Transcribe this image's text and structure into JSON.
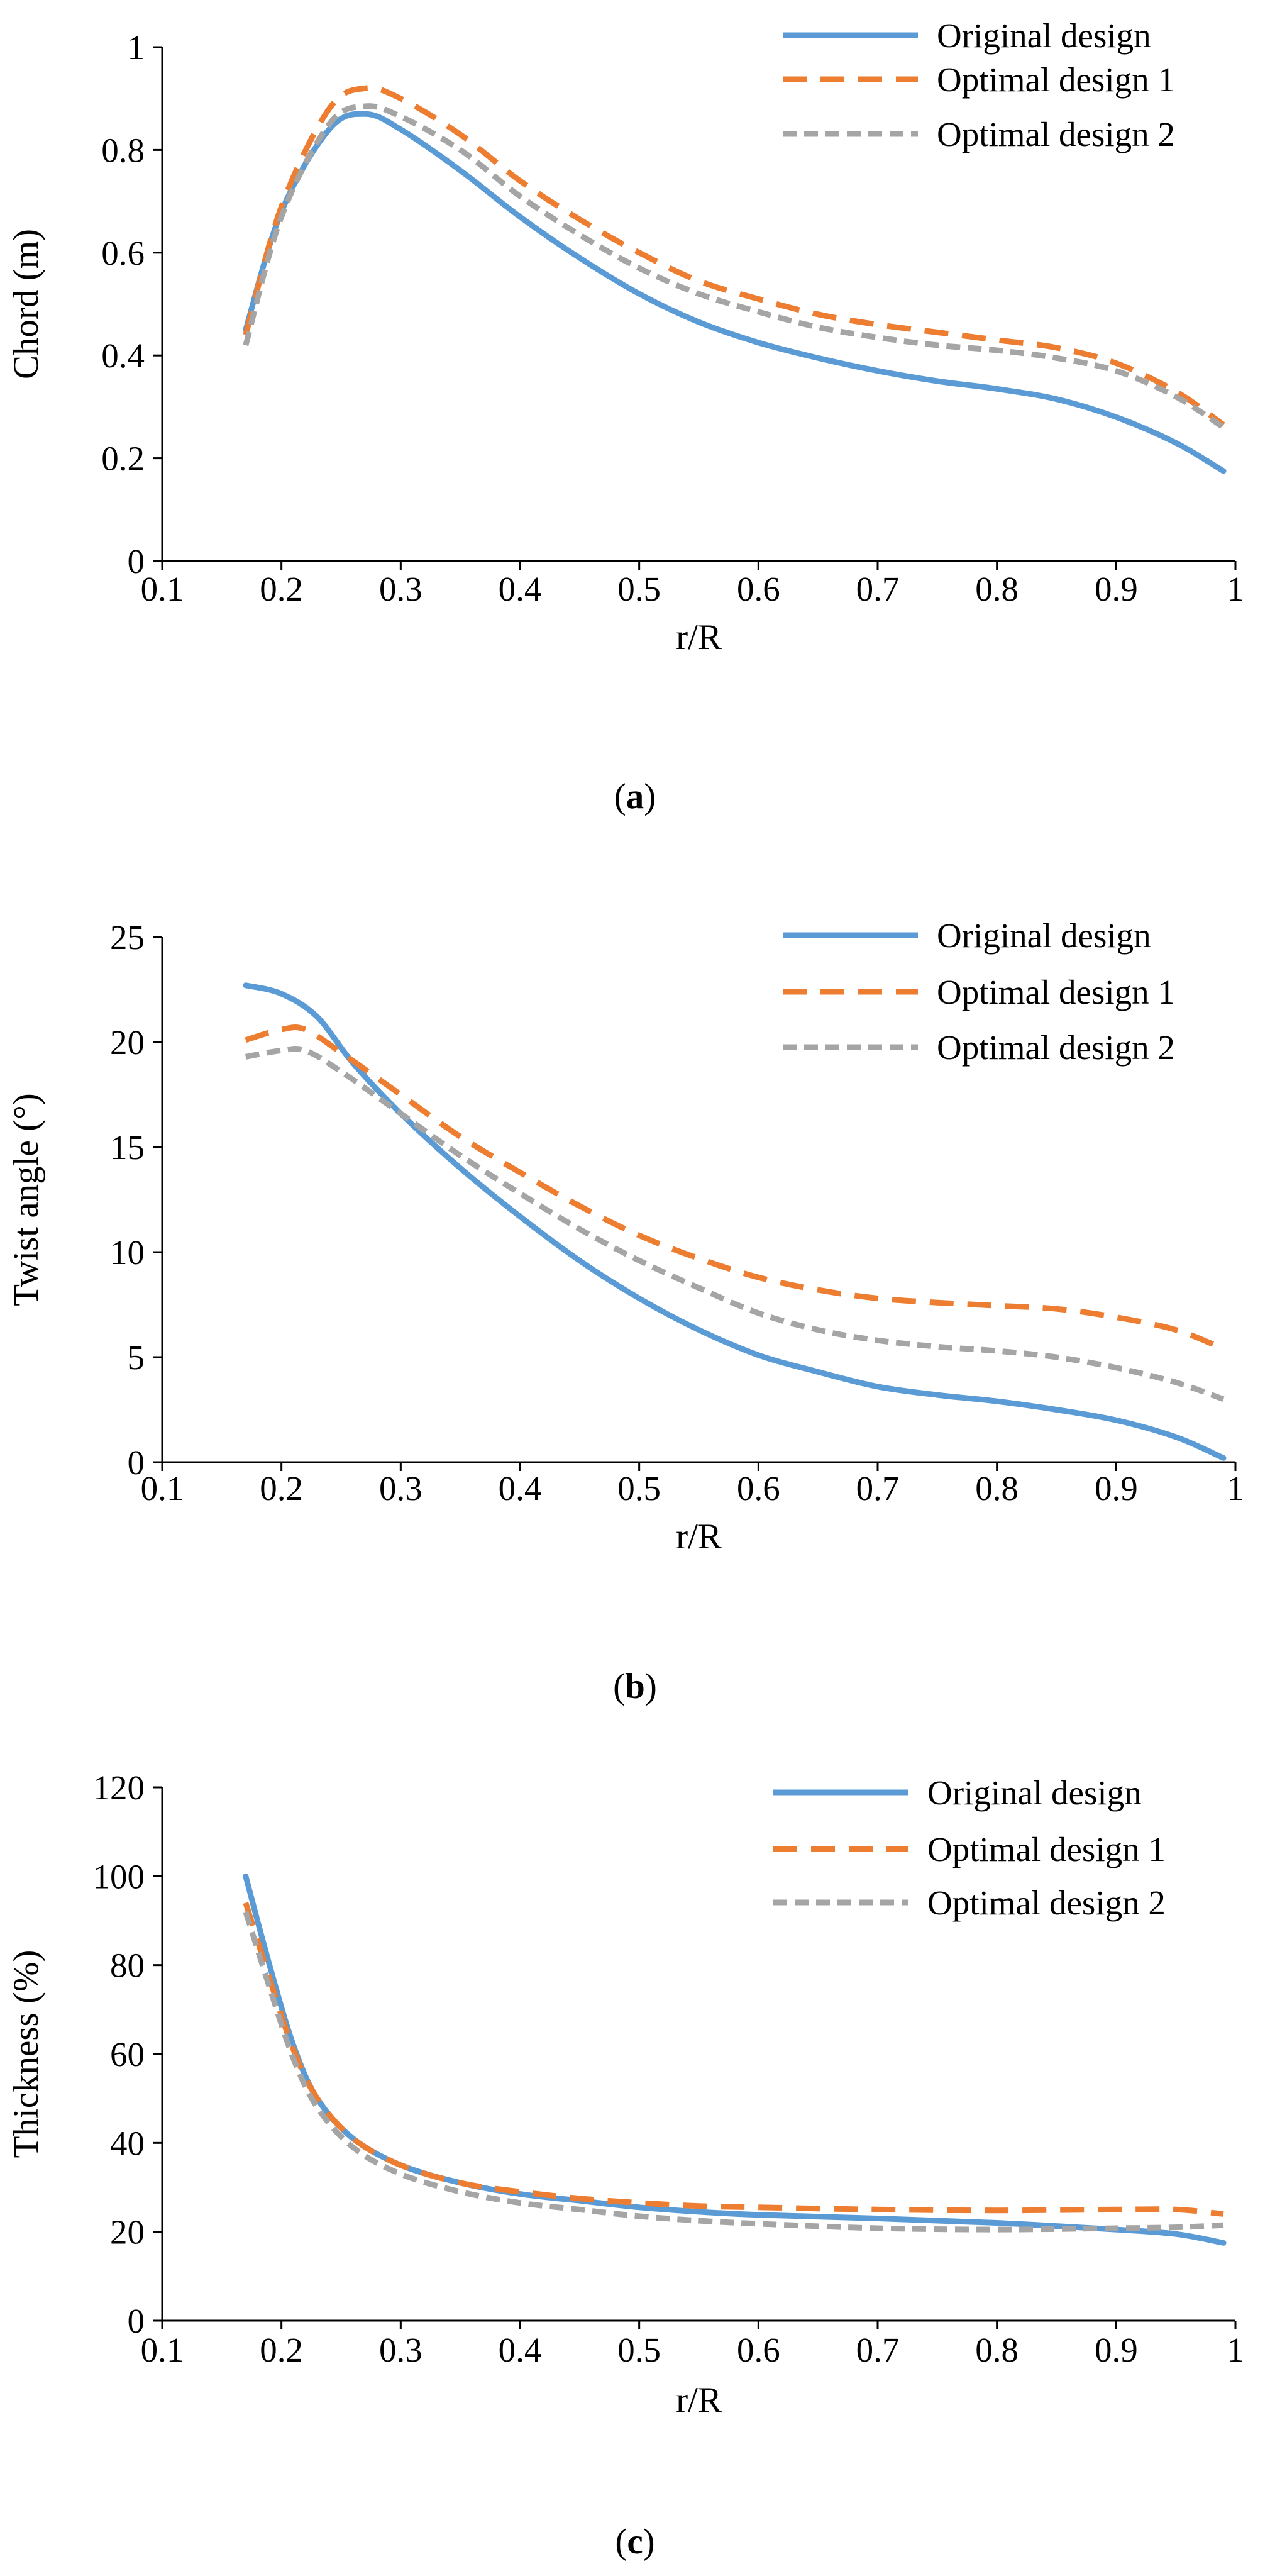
{
  "chart_data": [
    {
      "type": "line",
      "panel_label": "a",
      "xlabel": "r/R",
      "ylabel": "Chord (m)",
      "xlim": [
        0.1,
        1
      ],
      "ylim": [
        0,
        1
      ],
      "x_ticks": [
        0.1,
        0.2,
        0.3,
        0.4,
        0.5,
        0.6,
        0.7,
        0.8,
        0.9,
        1
      ],
      "y_ticks": [
        0,
        0.2,
        0.4,
        0.6,
        0.8,
        1
      ],
      "x_tick_labels": [
        "0.1",
        "0.2",
        "0.3",
        "0.4",
        "0.5",
        "0.6",
        "0.7",
        "0.8",
        "0.9",
        "1"
      ],
      "y_tick_labels": [
        "0",
        "0.2",
        "0.4",
        "0.6",
        "0.8",
        "1"
      ],
      "legend_position": "top-right",
      "grid": false,
      "series": [
        {
          "name": "Original design",
          "style": "solid",
          "color": "#5B9BD5",
          "x": [
            0.17,
            0.2,
            0.24,
            0.27,
            0.3,
            0.35,
            0.4,
            0.45,
            0.5,
            0.55,
            0.6,
            0.65,
            0.7,
            0.75,
            0.8,
            0.85,
            0.9,
            0.95,
            0.99
          ],
          "y": [
            0.45,
            0.68,
            0.84,
            0.87,
            0.84,
            0.76,
            0.67,
            0.59,
            0.52,
            0.465,
            0.425,
            0.395,
            0.37,
            0.35,
            0.335,
            0.315,
            0.28,
            0.23,
            0.175
          ]
        },
        {
          "name": "Optimal design 1",
          "style": "dashed",
          "color": "#ED7D31",
          "x": [
            0.17,
            0.2,
            0.24,
            0.27,
            0.3,
            0.35,
            0.4,
            0.45,
            0.5,
            0.55,
            0.6,
            0.65,
            0.7,
            0.75,
            0.8,
            0.85,
            0.9,
            0.95,
            0.99
          ],
          "y": [
            0.44,
            0.69,
            0.88,
            0.92,
            0.9,
            0.83,
            0.74,
            0.665,
            0.6,
            0.545,
            0.51,
            0.48,
            0.46,
            0.445,
            0.43,
            0.415,
            0.385,
            0.33,
            0.265
          ]
        },
        {
          "name": "Optimal design 2",
          "style": "dotted",
          "color": "#A5A5A5",
          "x": [
            0.17,
            0.2,
            0.24,
            0.27,
            0.3,
            0.35,
            0.4,
            0.45,
            0.5,
            0.55,
            0.6,
            0.65,
            0.7,
            0.75,
            0.8,
            0.85,
            0.9,
            0.95,
            0.99
          ],
          "y": [
            0.42,
            0.67,
            0.85,
            0.885,
            0.865,
            0.8,
            0.71,
            0.635,
            0.57,
            0.52,
            0.485,
            0.455,
            0.435,
            0.42,
            0.41,
            0.395,
            0.37,
            0.32,
            0.26
          ]
        }
      ]
    },
    {
      "type": "line",
      "panel_label": "b",
      "xlabel": "r/R",
      "ylabel": "Twist angle (°)",
      "xlim": [
        0.1,
        1
      ],
      "ylim": [
        0,
        25
      ],
      "x_ticks": [
        0.1,
        0.2,
        0.3,
        0.4,
        0.5,
        0.6,
        0.7,
        0.8,
        0.9,
        1
      ],
      "y_ticks": [
        0,
        5,
        10,
        15,
        20,
        25
      ],
      "x_tick_labels": [
        "0.1",
        "0.2",
        "0.3",
        "0.4",
        "0.5",
        "0.6",
        "0.7",
        "0.8",
        "0.9",
        "1"
      ],
      "y_tick_labels": [
        "0",
        "5",
        "10",
        "15",
        "20",
        "25"
      ],
      "legend_position": "top-right",
      "grid": false,
      "series": [
        {
          "name": "Original design",
          "style": "solid",
          "color": "#5B9BD5",
          "x": [
            0.17,
            0.2,
            0.23,
            0.26,
            0.3,
            0.35,
            0.4,
            0.45,
            0.5,
            0.55,
            0.6,
            0.65,
            0.7,
            0.75,
            0.8,
            0.85,
            0.9,
            0.95,
            0.99
          ],
          "y": [
            22.7,
            22.3,
            21.2,
            19.0,
            16.6,
            14.0,
            11.7,
            9.6,
            7.8,
            6.3,
            5.1,
            4.3,
            3.6,
            3.2,
            2.9,
            2.5,
            2.0,
            1.2,
            0.2
          ]
        },
        {
          "name": "Optimal design 1",
          "style": "dashed",
          "color": "#ED7D31",
          "x": [
            0.17,
            0.2,
            0.22,
            0.25,
            0.3,
            0.35,
            0.4,
            0.45,
            0.5,
            0.55,
            0.6,
            0.65,
            0.7,
            0.75,
            0.8,
            0.85,
            0.9,
            0.95,
            0.99
          ],
          "y": [
            20.1,
            20.6,
            20.6,
            19.5,
            17.5,
            15.5,
            13.8,
            12.2,
            10.8,
            9.7,
            8.8,
            8.2,
            7.8,
            7.6,
            7.45,
            7.3,
            6.9,
            6.3,
            5.4
          ]
        },
        {
          "name": "Optimal design 2",
          "style": "dotted",
          "color": "#A5A5A5",
          "x": [
            0.17,
            0.2,
            0.22,
            0.25,
            0.3,
            0.35,
            0.4,
            0.45,
            0.5,
            0.55,
            0.6,
            0.65,
            0.7,
            0.75,
            0.8,
            0.85,
            0.9,
            0.95,
            0.99
          ],
          "y": [
            19.3,
            19.6,
            19.6,
            18.6,
            16.6,
            14.6,
            12.8,
            11.1,
            9.6,
            8.3,
            7.1,
            6.3,
            5.8,
            5.5,
            5.3,
            5.0,
            4.5,
            3.8,
            3.0
          ]
        }
      ]
    },
    {
      "type": "line",
      "panel_label": "c",
      "xlabel": "r/R",
      "ylabel": "Thickness (%)",
      "xlim": [
        0.1,
        1
      ],
      "ylim": [
        0,
        120
      ],
      "x_ticks": [
        0.1,
        0.2,
        0.3,
        0.4,
        0.5,
        0.6,
        0.7,
        0.8,
        0.9,
        1
      ],
      "y_ticks": [
        0,
        20,
        40,
        60,
        80,
        100,
        120
      ],
      "x_tick_labels": [
        "0.1",
        "0.2",
        "0.3",
        "0.4",
        "0.5",
        "0.6",
        "0.7",
        "0.8",
        "0.9",
        "1"
      ],
      "y_tick_labels": [
        "0",
        "20",
        "40",
        "60",
        "80",
        "100",
        "120"
      ],
      "legend_position": "top-right",
      "grid": false,
      "series": [
        {
          "name": "Original design",
          "style": "solid",
          "color": "#5B9BD5",
          "x": [
            0.17,
            0.19,
            0.21,
            0.23,
            0.26,
            0.3,
            0.35,
            0.4,
            0.45,
            0.5,
            0.55,
            0.6,
            0.7,
            0.8,
            0.9,
            0.95,
            0.99
          ],
          "y": [
            100,
            80,
            62,
            50,
            41,
            35,
            31,
            28.5,
            27,
            25.5,
            24.5,
            23.8,
            23,
            22,
            20.5,
            19.5,
            17.5
          ]
        },
        {
          "name": "Optimal design 1",
          "style": "dashed",
          "color": "#ED7D31",
          "x": [
            0.17,
            0.19,
            0.21,
            0.23,
            0.26,
            0.3,
            0.35,
            0.4,
            0.45,
            0.5,
            0.55,
            0.6,
            0.7,
            0.8,
            0.9,
            0.95,
            0.99
          ],
          "y": [
            94,
            77,
            61,
            50,
            41,
            35,
            31,
            29,
            27.5,
            26.5,
            25.8,
            25.5,
            25,
            24.8,
            25,
            25,
            24
          ]
        },
        {
          "name": "Optimal design 2",
          "style": "dotted",
          "color": "#A5A5A5",
          "x": [
            0.17,
            0.19,
            0.21,
            0.23,
            0.26,
            0.3,
            0.35,
            0.4,
            0.45,
            0.5,
            0.55,
            0.6,
            0.7,
            0.8,
            0.9,
            0.95,
            0.99
          ],
          "y": [
            92,
            75,
            59,
            48,
            39,
            33,
            29,
            26.5,
            25,
            23.5,
            22.5,
            21.8,
            20.8,
            20.5,
            20.8,
            21,
            21.5
          ]
        }
      ]
    }
  ]
}
